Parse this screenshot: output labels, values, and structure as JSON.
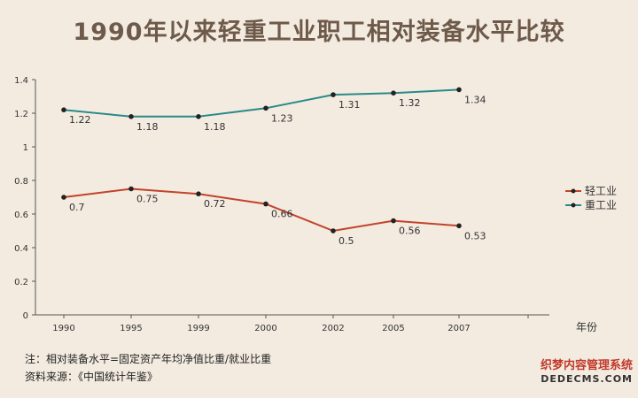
{
  "chart_data": {
    "type": "line",
    "title": "1990年以来轻重工业职工相对装备水平比较",
    "categories": [
      "1990",
      "1995",
      "1999",
      "2000",
      "2002",
      "2005",
      "2007"
    ],
    "xlabel": "年份",
    "ylabel": "",
    "ylim": [
      0,
      1.4
    ],
    "yticks": [
      "0",
      "0.2",
      "0.4",
      "0.6",
      "0.8",
      "1",
      "1.2",
      "1.4"
    ],
    "grid": false,
    "legend_position": "right",
    "series": [
      {
        "name": "轻工业",
        "color": "#c1432a",
        "values": [
          0.7,
          0.75,
          0.72,
          0.66,
          0.5,
          0.56,
          0.53
        ],
        "labels": [
          "0.7",
          "0.75",
          "0.72",
          "0.66",
          "0.5",
          "0.56",
          "0.53"
        ]
      },
      {
        "name": "重工业",
        "color": "#2a8a88",
        "values": [
          1.22,
          1.18,
          1.18,
          1.23,
          1.31,
          1.32,
          1.34
        ],
        "labels": [
          "1.22",
          "1.18",
          "1.18",
          "1.23",
          "1.31",
          "1.32",
          "1.34"
        ]
      }
    ]
  },
  "notes": {
    "line1": "注：相对装备水平=固定资产年均净值比重/就业比重",
    "line2": "资料来源：《中国统计年鉴》"
  },
  "watermark": {
    "line1": "织梦内容管理系统",
    "line2": "DEDECMS.COM"
  }
}
